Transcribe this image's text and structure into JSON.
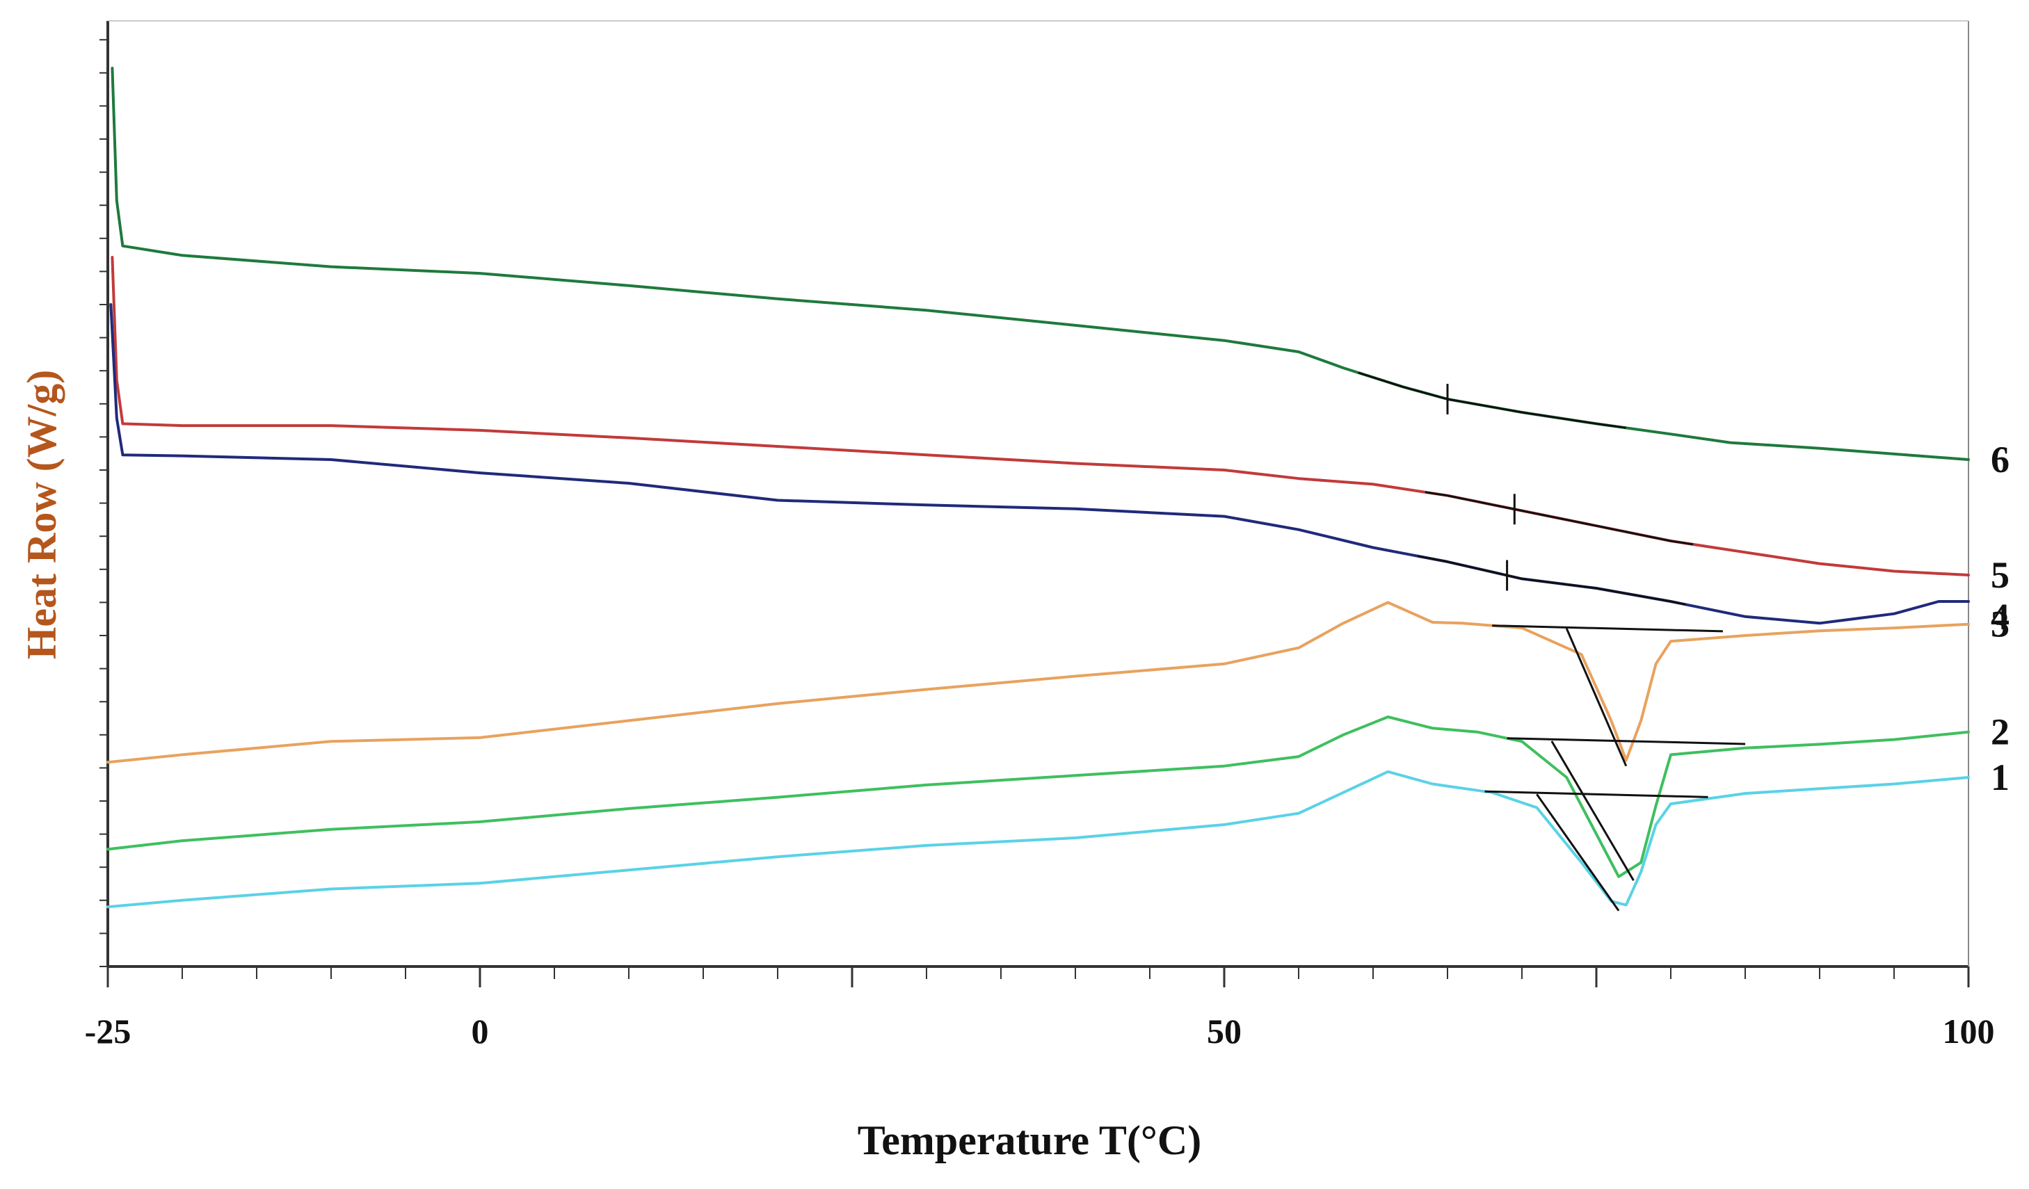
{
  "chart_data": {
    "type": "line",
    "title": "",
    "xlabel": "Temperature T(°C)",
    "ylabel": "Heat Row (W/g)",
    "xlim": [
      -25,
      100
    ],
    "ylim": [
      0,
      100
    ],
    "x_ticks": [
      -25,
      0,
      50,
      100
    ],
    "x_tick_labels": [
      "-25",
      "0",
      "50",
      "100"
    ],
    "y_tick_labels": [],
    "grid": false,
    "legend": "inline labels at right end of curves",
    "colors": {
      "xlabel": "#111111",
      "ylabel": "#b5561c",
      "axis": "#333333"
    },
    "series": [
      {
        "name": "6",
        "color": "#1e7a3c",
        "points": [
          [
            -24.7,
            95
          ],
          [
            -24.4,
            81
          ],
          [
            -24,
            76.2
          ],
          [
            -20,
            75.2
          ],
          [
            -10,
            74
          ],
          [
            0,
            73.3
          ],
          [
            10,
            72
          ],
          [
            20,
            70.6
          ],
          [
            30,
            69.4
          ],
          [
            40,
            67.8
          ],
          [
            50,
            66.2
          ],
          [
            55,
            65
          ],
          [
            58,
            63.3
          ],
          [
            62,
            61.3
          ],
          [
            65,
            60
          ],
          [
            70,
            58.6
          ],
          [
            75,
            57.4
          ],
          [
            80,
            56.3
          ],
          [
            84,
            55.4
          ],
          [
            90,
            54.8
          ],
          [
            95,
            54.2
          ],
          [
            100,
            53.6
          ]
        ],
        "markers": [
          {
            "x": 65,
            "type": "vertical"
          }
        ]
      },
      {
        "name": "5",
        "color": "#c23a3a",
        "points": [
          [
            -24.7,
            75
          ],
          [
            -24.4,
            62
          ],
          [
            -24,
            57.4
          ],
          [
            -20,
            57.2
          ],
          [
            -10,
            57.2
          ],
          [
            0,
            56.7
          ],
          [
            10,
            55.9
          ],
          [
            20,
            55
          ],
          [
            30,
            54.1
          ],
          [
            40,
            53.2
          ],
          [
            50,
            52.5
          ],
          [
            55,
            51.6
          ],
          [
            60,
            51
          ],
          [
            65,
            49.8
          ],
          [
            70,
            48.2
          ],
          [
            75,
            46.6
          ],
          [
            80,
            45
          ],
          [
            85,
            43.8
          ],
          [
            90,
            42.6
          ],
          [
            95,
            41.8
          ],
          [
            100,
            41.4
          ]
        ],
        "markers": [
          {
            "x": 69.5,
            "type": "vertical"
          }
        ]
      },
      {
        "name": "4",
        "color": "#202a7a",
        "points": [
          [
            -24.8,
            70
          ],
          [
            -24.4,
            58
          ],
          [
            -24,
            54.1
          ],
          [
            -20,
            54
          ],
          [
            -10,
            53.6
          ],
          [
            0,
            52.2
          ],
          [
            10,
            51.1
          ],
          [
            20,
            49.3
          ],
          [
            30,
            48.8
          ],
          [
            40,
            48.4
          ],
          [
            50,
            47.6
          ],
          [
            55,
            46.2
          ],
          [
            60,
            44.3
          ],
          [
            65,
            42.8
          ],
          [
            70,
            41
          ],
          [
            75,
            40
          ],
          [
            80,
            38.6
          ],
          [
            85,
            37
          ],
          [
            90,
            36.3
          ],
          [
            95,
            37.3
          ],
          [
            98,
            38.6
          ],
          [
            100,
            38.6
          ]
        ],
        "markers": [
          {
            "x": 69,
            "type": "vertical"
          }
        ]
      },
      {
        "name": "3",
        "color": "#e8a25e",
        "points": [
          [
            -25,
            21.6
          ],
          [
            -20,
            22.4
          ],
          [
            -10,
            23.8
          ],
          [
            0,
            24.2
          ],
          [
            10,
            26
          ],
          [
            20,
            27.8
          ],
          [
            30,
            29.3
          ],
          [
            40,
            30.7
          ],
          [
            50,
            32
          ],
          [
            55,
            33.7
          ],
          [
            58,
            36.3
          ],
          [
            61,
            38.5
          ],
          [
            64,
            36.4
          ],
          [
            66,
            36.3
          ],
          [
            70,
            35.8
          ],
          [
            74,
            33
          ],
          [
            76,
            26
          ],
          [
            77,
            21.8
          ],
          [
            78,
            26
          ],
          [
            79,
            32
          ],
          [
            80,
            34.4
          ],
          [
            85,
            35
          ],
          [
            90,
            35.5
          ],
          [
            95,
            35.8
          ],
          [
            100,
            36.2
          ]
        ],
        "markers": [
          {
            "type": "tangent_baseline",
            "x1": 68,
            "x2": 83.5
          },
          {
            "type": "tangent_slope",
            "x_top": 73,
            "x_bottom": 77
          }
        ]
      },
      {
        "name": "2",
        "color": "#3fbf5f",
        "points": [
          [
            -25,
            12.4
          ],
          [
            -20,
            13.3
          ],
          [
            -10,
            14.5
          ],
          [
            0,
            15.3
          ],
          [
            10,
            16.7
          ],
          [
            20,
            17.9
          ],
          [
            30,
            19.2
          ],
          [
            40,
            20.2
          ],
          [
            50,
            21.2
          ],
          [
            55,
            22.2
          ],
          [
            58,
            24.5
          ],
          [
            61,
            26.4
          ],
          [
            64,
            25.2
          ],
          [
            67,
            24.8
          ],
          [
            70,
            23.8
          ],
          [
            73,
            20
          ],
          [
            75,
            14
          ],
          [
            76.5,
            9.5
          ],
          [
            78,
            11
          ],
          [
            79,
            17
          ],
          [
            80,
            22.4
          ],
          [
            85,
            23.1
          ],
          [
            90,
            23.5
          ],
          [
            95,
            24
          ],
          [
            100,
            24.8
          ]
        ],
        "markers": [
          {
            "type": "tangent_baseline",
            "x1": 69,
            "x2": 85
          },
          {
            "type": "tangent_slope",
            "x_top": 72,
            "x_bottom": 77.5
          }
        ]
      },
      {
        "name": "1",
        "color": "#5ad2e6",
        "points": [
          [
            -25,
            6.3
          ],
          [
            -20,
            7
          ],
          [
            -10,
            8.2
          ],
          [
            0,
            8.8
          ],
          [
            10,
            10.2
          ],
          [
            20,
            11.6
          ],
          [
            30,
            12.8
          ],
          [
            40,
            13.6
          ],
          [
            50,
            15
          ],
          [
            55,
            16.2
          ],
          [
            58,
            18.4
          ],
          [
            61,
            20.6
          ],
          [
            64,
            19.3
          ],
          [
            68,
            18.4
          ],
          [
            71,
            16.8
          ],
          [
            74,
            11
          ],
          [
            76,
            6.9
          ],
          [
            77,
            6.5
          ],
          [
            78,
            10
          ],
          [
            79,
            15
          ],
          [
            80,
            17.2
          ],
          [
            85,
            18.3
          ],
          [
            90,
            18.8
          ],
          [
            95,
            19.3
          ],
          [
            100,
            20
          ]
        ],
        "markers": [
          {
            "type": "tangent_baseline",
            "x1": 67.5,
            "x2": 82.5
          },
          {
            "type": "tangent_slope",
            "x_top": 71,
            "x_bottom": 76.5
          }
        ]
      }
    ]
  }
}
